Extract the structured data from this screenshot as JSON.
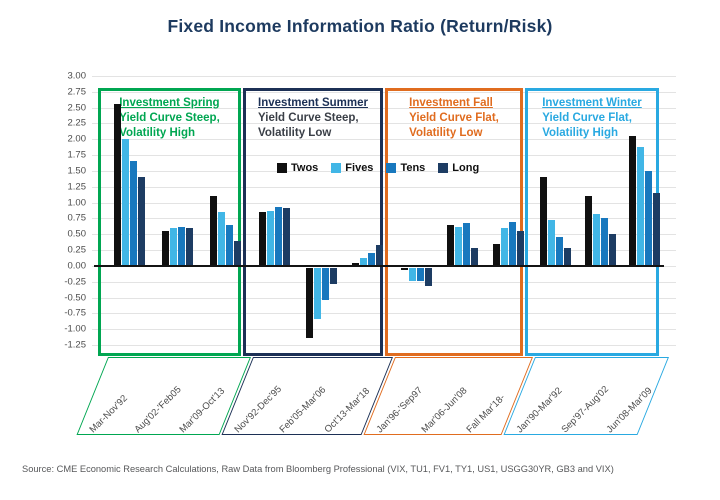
{
  "page": {
    "source": "Source: CME Economic Research Calculations, Raw Data from Bloomberg Professional (VIX, TU1, FV1, TY1, US1, USGG30YR, GB3 and VIX)"
  },
  "chart_data": {
    "type": "bar",
    "title": "Fixed Income Information Ratio (Return/Risk)",
    "xlabel": "",
    "ylabel": "",
    "ylim": [
      -1.25,
      3.0
    ],
    "ytick_step": 0.25,
    "grid": true,
    "legend": {
      "position": "inside-top-center",
      "entries": [
        "Twos",
        "Fives",
        "Tens",
        "Long"
      ]
    },
    "series": [
      {
        "name": "Twos",
        "color": "#101010"
      },
      {
        "name": "Fives",
        "color": "#41B6E6"
      },
      {
        "name": "Tens",
        "color": "#1878BE"
      },
      {
        "name": "Long",
        "color": "#1D3C63"
      }
    ],
    "sections": [
      {
        "name": "Investment Spring",
        "subtitle_lines": [
          "Yield Curve Steep,",
          "Volatility High"
        ],
        "box_color": "#00A651",
        "title_color": "#00A651",
        "subtitle_color": "#00A651",
        "groups": [
          {
            "label": "Mar-Nov'92",
            "values": [
              2.55,
              2.0,
              1.65,
              1.4
            ]
          },
          {
            "label": "Aug'02-'Feb05",
            "values": [
              0.55,
              0.6,
              0.62,
              0.6
            ]
          },
          {
            "label": "Mar'09-Oct'13",
            "values": [
              1.1,
              0.85,
              0.65,
              0.4
            ]
          }
        ]
      },
      {
        "name": "Investment Summer",
        "subtitle_lines": [
          "Yield Curve Steep,",
          "Volatility Low"
        ],
        "box_color": "#1C3055",
        "title_color": "#1C3055",
        "subtitle_color": "#3a3f47",
        "groups": [
          {
            "label": "Nov'92-Dec'95",
            "values": [
              0.85,
              0.87,
              0.93,
              0.91
            ]
          },
          {
            "label": "Feb'05-Mar'06",
            "values": [
              -1.1,
              -0.8,
              -0.5,
              -0.25
            ]
          },
          {
            "label": "Oct'13-Mar'18",
            "values": [
              0.05,
              0.12,
              0.2,
              0.33
            ]
          }
        ]
      },
      {
        "name": "Investment Fall",
        "subtitle_lines": [
          "Yield Curve Flat,",
          "Volatility Low"
        ],
        "box_color": "#E06C1F",
        "title_color": "#E06C1F",
        "subtitle_color": "#E06C1F",
        "groups": [
          {
            "label": "Jan'96-'Sep97",
            "values": [
              -0.04,
              -0.2,
              -0.2,
              -0.28
            ]
          },
          {
            "label": "Mar'06-Jun'08",
            "values": [
              0.65,
              0.62,
              0.68,
              0.28
            ]
          },
          {
            "label": "Fall Mar'18-",
            "values": [
              0.35,
              0.6,
              0.7,
              0.55
            ]
          }
        ]
      },
      {
        "name": "Investment Winter",
        "subtitle_lines": [
          "Yield Curve Flat,",
          "Volatility High"
        ],
        "box_color": "#29A9E1",
        "title_color": "#29A9E1",
        "subtitle_color": "#29A9E1",
        "groups": [
          {
            "label": "Jan'90-Mar'92",
            "values": [
              1.4,
              0.72,
              0.45,
              0.28
            ]
          },
          {
            "label": "Sep'97-Aug'02",
            "values": [
              1.1,
              0.82,
              0.75,
              0.5
            ]
          },
          {
            "label": "Jun'08-Mar'09",
            "values": [
              2.05,
              1.88,
              1.5,
              1.15
            ]
          }
        ]
      }
    ]
  }
}
